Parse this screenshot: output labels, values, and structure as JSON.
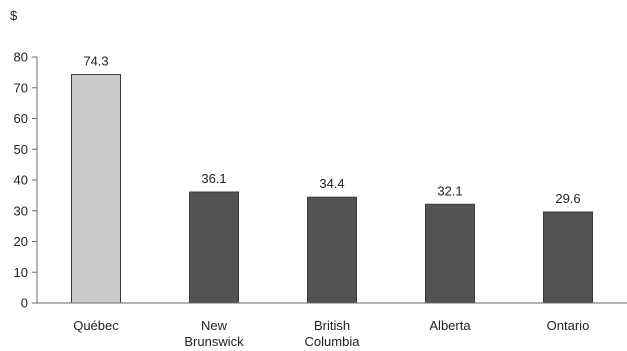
{
  "chart_data": {
    "type": "bar",
    "title": "",
    "xlabel": "",
    "ylabel": "$",
    "ylim": [
      0,
      80
    ],
    "yticks": [
      0,
      10,
      20,
      30,
      40,
      50,
      60,
      70,
      80
    ],
    "grid": false,
    "legend": "none",
    "categories": [
      [
        "Québec"
      ],
      [
        "New",
        "Brunswick"
      ],
      [
        "British",
        "Columbia"
      ],
      [
        "Alberta"
      ],
      [
        "Ontario"
      ]
    ],
    "values": [
      74.3,
      36.1,
      34.4,
      32.1,
      29.6
    ],
    "value_labels": [
      "74.3",
      "36.1",
      "34.4",
      "32.1",
      "29.6"
    ],
    "bar_colors": [
      "#c9cacc",
      "#525355",
      "#525355",
      "#525355",
      "#525355"
    ]
  }
}
